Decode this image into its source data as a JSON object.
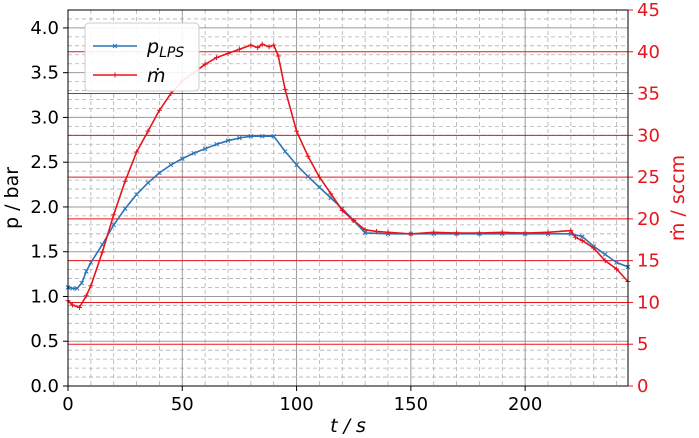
{
  "chart_data": {
    "type": "line",
    "xlabel": "t / s",
    "ylabel_left": "p / bar",
    "ylabel_right": "ṁ / sccm",
    "xlim": [
      0,
      245
    ],
    "ylim_left": [
      0.0,
      4.2
    ],
    "ylim_right": [
      0,
      45
    ],
    "x_ticks": [
      "0",
      "50",
      "100",
      "150",
      "200"
    ],
    "y_left_ticks": [
      "0.0",
      "0.5",
      "1.0",
      "1.5",
      "2.0",
      "2.5",
      "3.0",
      "3.5",
      "4.0"
    ],
    "y_right_ticks": [
      "0",
      "5",
      "10",
      "15",
      "20",
      "25",
      "30",
      "35",
      "40",
      "45"
    ],
    "grid": true,
    "legend_position": "top-left",
    "colors": {
      "pressure": "#2a74b5",
      "flow": "#e8141c"
    },
    "series": [
      {
        "name": "p_LPS",
        "legend_main": "p",
        "legend_sub": "LPS",
        "axis": "left",
        "x": [
          0,
          2,
          4,
          6,
          8,
          10,
          15,
          20,
          25,
          30,
          35,
          40,
          45,
          50,
          55,
          60,
          65,
          70,
          75,
          80,
          85,
          90,
          95,
          100,
          105,
          110,
          115,
          120,
          125,
          130,
          140,
          150,
          160,
          170,
          180,
          190,
          200,
          210,
          220,
          225,
          230,
          235,
          240,
          245
        ],
        "y": [
          1.1,
          1.09,
          1.09,
          1.15,
          1.28,
          1.38,
          1.58,
          1.8,
          1.98,
          2.14,
          2.27,
          2.38,
          2.47,
          2.54,
          2.6,
          2.65,
          2.7,
          2.74,
          2.77,
          2.79,
          2.79,
          2.79,
          2.62,
          2.47,
          2.34,
          2.22,
          2.1,
          1.98,
          1.85,
          1.71,
          1.7,
          1.7,
          1.7,
          1.7,
          1.7,
          1.7,
          1.7,
          1.7,
          1.7,
          1.67,
          1.56,
          1.47,
          1.38,
          1.33
        ]
      },
      {
        "name": "ṁ",
        "legend_main": "ṁ",
        "legend_sub": "",
        "axis": "right",
        "x": [
          0,
          2,
          5,
          8,
          10,
          15,
          20,
          25,
          30,
          35,
          40,
          45,
          50,
          55,
          60,
          65,
          70,
          75,
          80,
          83,
          85,
          88,
          90,
          92,
          95,
          100,
          105,
          110,
          115,
          120,
          125,
          130,
          135,
          140,
          150,
          160,
          170,
          180,
          190,
          200,
          210,
          220,
          222,
          225,
          230,
          235,
          240,
          245
        ],
        "y": [
          10.2,
          9.7,
          9.4,
          10.8,
          12.0,
          16.0,
          20.5,
          24.5,
          28.0,
          30.5,
          33.0,
          35.0,
          36.5,
          37.5,
          38.5,
          39.3,
          39.8,
          40.3,
          40.8,
          40.5,
          40.9,
          40.6,
          40.8,
          39.5,
          35.5,
          30.5,
          27.5,
          25.0,
          23.0,
          21.0,
          19.8,
          18.7,
          18.5,
          18.4,
          18.2,
          18.4,
          18.3,
          18.3,
          18.4,
          18.3,
          18.4,
          18.6,
          17.8,
          17.4,
          16.5,
          15.0,
          14.0,
          12.5
        ]
      }
    ]
  }
}
